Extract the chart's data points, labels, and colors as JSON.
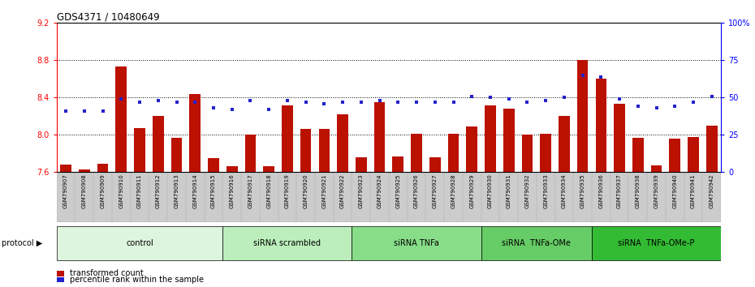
{
  "title": "GDS4371 / 10480649",
  "samples": [
    "GSM790907",
    "GSM790908",
    "GSM790909",
    "GSM790910",
    "GSM790911",
    "GSM790912",
    "GSM790913",
    "GSM790914",
    "GSM790915",
    "GSM790916",
    "GSM790917",
    "GSM790918",
    "GSM790919",
    "GSM790920",
    "GSM790921",
    "GSM790922",
    "GSM790923",
    "GSM790924",
    "GSM790925",
    "GSM790926",
    "GSM790927",
    "GSM790928",
    "GSM790929",
    "GSM790930",
    "GSM790931",
    "GSM790932",
    "GSM790933",
    "GSM790934",
    "GSM790935",
    "GSM790936",
    "GSM790937",
    "GSM790938",
    "GSM790939",
    "GSM790940",
    "GSM790941",
    "GSM790942"
  ],
  "bar_values": [
    7.68,
    7.63,
    7.69,
    8.73,
    8.07,
    8.2,
    7.97,
    8.44,
    7.75,
    7.66,
    8.0,
    7.66,
    8.32,
    8.06,
    8.06,
    8.22,
    7.76,
    8.35,
    7.77,
    8.01,
    7.76,
    8.01,
    8.09,
    8.32,
    8.28,
    8.0,
    8.01,
    8.2,
    8.8,
    8.6,
    8.33,
    7.97,
    7.67,
    7.96,
    7.98,
    8.1
  ],
  "percentile_values": [
    41,
    41,
    41,
    49,
    47,
    48,
    47,
    47,
    43,
    42,
    48,
    42,
    48,
    47,
    46,
    47,
    47,
    48,
    47,
    47,
    47,
    47,
    51,
    50,
    49,
    47,
    48,
    50,
    65,
    64,
    49,
    44,
    43,
    44,
    47,
    51
  ],
  "ylim_left": [
    7.6,
    9.2
  ],
  "ylim_right": [
    0,
    100
  ],
  "yticks_left": [
    7.6,
    8.0,
    8.4,
    8.8,
    9.2
  ],
  "yticks_right": [
    0,
    25,
    50,
    75,
    100
  ],
  "ytick_labels_right": [
    "0",
    "25",
    "50",
    "75",
    "100%"
  ],
  "bar_color": "#bb1100",
  "scatter_color": "#2222cc",
  "groups": [
    {
      "label": "control",
      "start": 0,
      "end": 9,
      "color": "#e0f5e0"
    },
    {
      "label": "siRNA scrambled",
      "start": 9,
      "end": 16,
      "color": "#b8ebb8"
    },
    {
      "label": "siRNA TNFa",
      "start": 16,
      "end": 23,
      "color": "#88dd88"
    },
    {
      "label": "siRNA  TNFa-OMe",
      "start": 23,
      "end": 29,
      "color": "#66cc66"
    },
    {
      "label": "siRNA  TNFa-OMe-P",
      "start": 29,
      "end": 36,
      "color": "#33bb33"
    }
  ],
  "protocol_label": "protocol",
  "legend_bar_label": "transformed count",
  "legend_scatter_label": "percentile rank within the sample"
}
